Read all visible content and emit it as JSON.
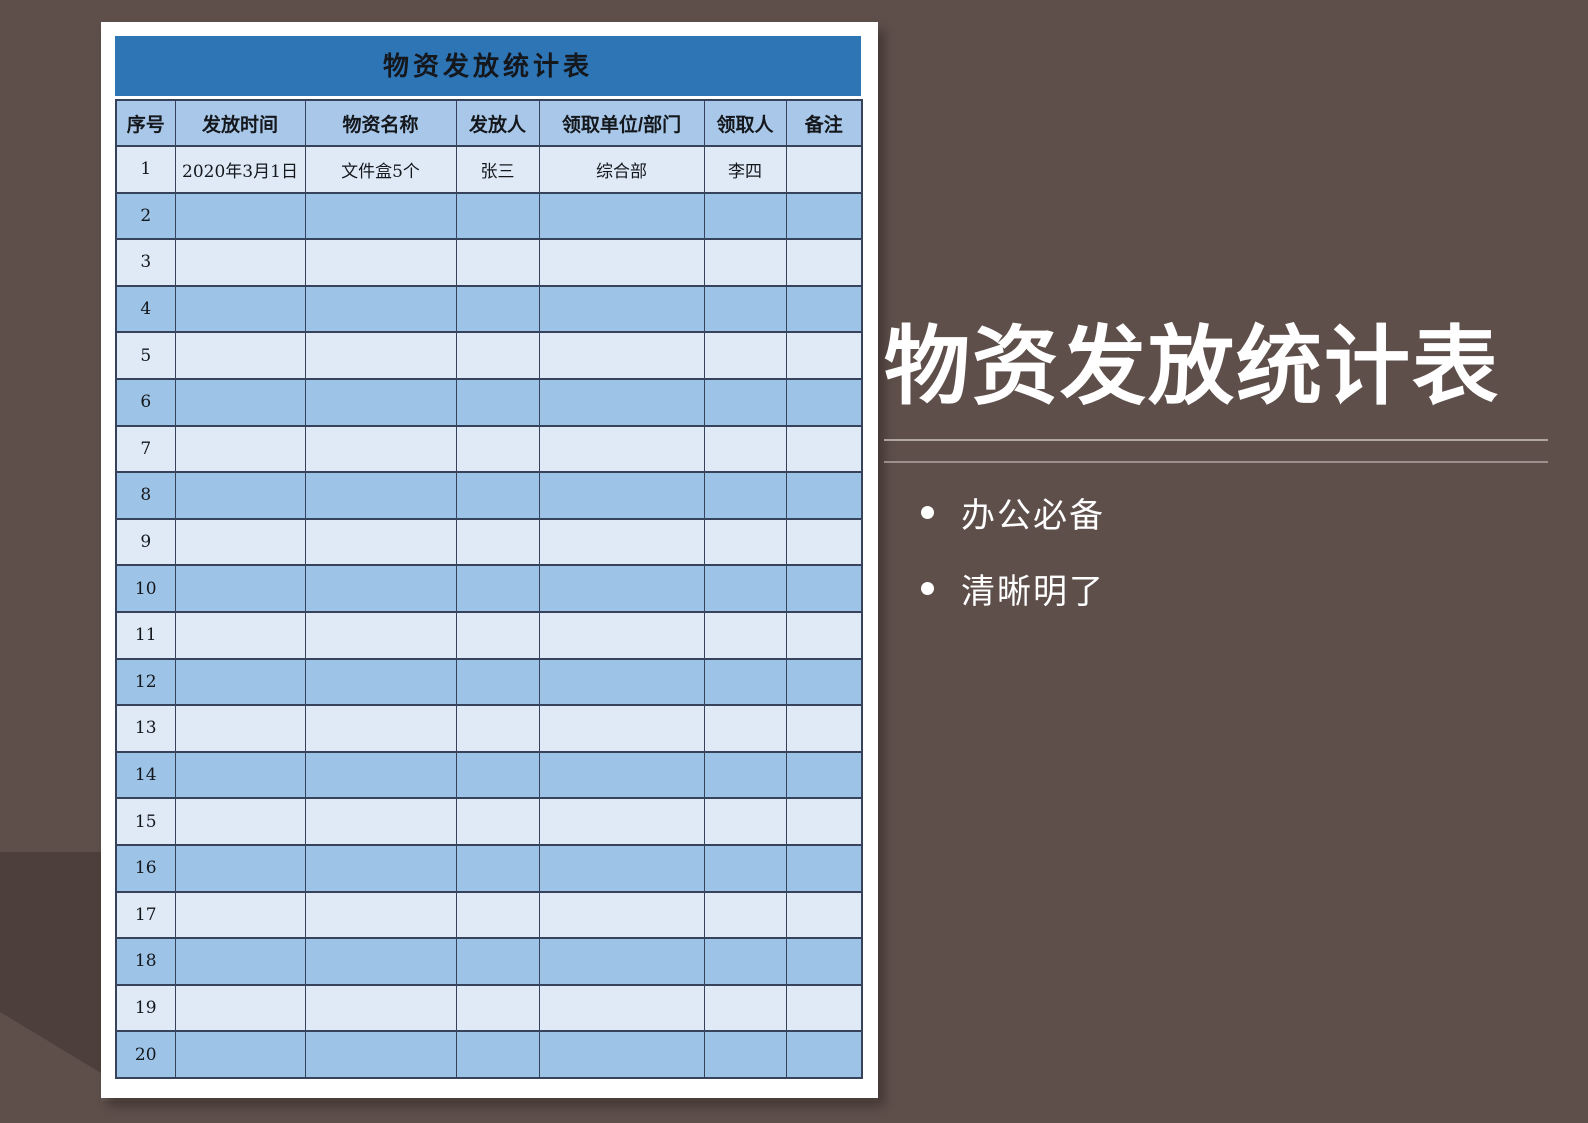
{
  "colors": {
    "background": "#5e4f4b",
    "background_shadow": "#4d403c",
    "card": "#ffffff",
    "table_title_bg": "#2e75b6",
    "table_header_bg": "#a9c8e9",
    "row_light": "#e0eaf6",
    "row_dark": "#9dc3e6",
    "grid_line": "#36435a",
    "table_text": "#14171c",
    "panel_text": "#ffffff",
    "underline": "#bdb4b0"
  },
  "table": {
    "title": "物资发放统计表",
    "headers": [
      "序号",
      "发放时间",
      "物资名称",
      "发放人",
      "领取单位/部门",
      "领取人",
      "备注"
    ],
    "rows": [
      [
        "1",
        "2020年3月1日",
        "文件盒5个",
        "张三",
        "综合部",
        "李四",
        ""
      ],
      [
        "2",
        "",
        "",
        "",
        "",
        "",
        ""
      ],
      [
        "3",
        "",
        "",
        "",
        "",
        "",
        ""
      ],
      [
        "4",
        "",
        "",
        "",
        "",
        "",
        ""
      ],
      [
        "5",
        "",
        "",
        "",
        "",
        "",
        ""
      ],
      [
        "6",
        "",
        "",
        "",
        "",
        "",
        ""
      ],
      [
        "7",
        "",
        "",
        "",
        "",
        "",
        ""
      ],
      [
        "8",
        "",
        "",
        "",
        "",
        "",
        ""
      ],
      [
        "9",
        "",
        "",
        "",
        "",
        "",
        ""
      ],
      [
        "10",
        "",
        "",
        "",
        "",
        "",
        ""
      ],
      [
        "11",
        "",
        "",
        "",
        "",
        "",
        ""
      ],
      [
        "12",
        "",
        "",
        "",
        "",
        "",
        ""
      ],
      [
        "13",
        "",
        "",
        "",
        "",
        "",
        ""
      ],
      [
        "14",
        "",
        "",
        "",
        "",
        "",
        ""
      ],
      [
        "15",
        "",
        "",
        "",
        "",
        "",
        ""
      ],
      [
        "16",
        "",
        "",
        "",
        "",
        "",
        ""
      ],
      [
        "17",
        "",
        "",
        "",
        "",
        "",
        ""
      ],
      [
        "18",
        "",
        "",
        "",
        "",
        "",
        ""
      ],
      [
        "19",
        "",
        "",
        "",
        "",
        "",
        ""
      ],
      [
        "20",
        "",
        "",
        "",
        "",
        "",
        ""
      ]
    ]
  },
  "panel": {
    "title": "物资发放统计表",
    "bullets": [
      "办公必备",
      "清晰明了"
    ]
  }
}
